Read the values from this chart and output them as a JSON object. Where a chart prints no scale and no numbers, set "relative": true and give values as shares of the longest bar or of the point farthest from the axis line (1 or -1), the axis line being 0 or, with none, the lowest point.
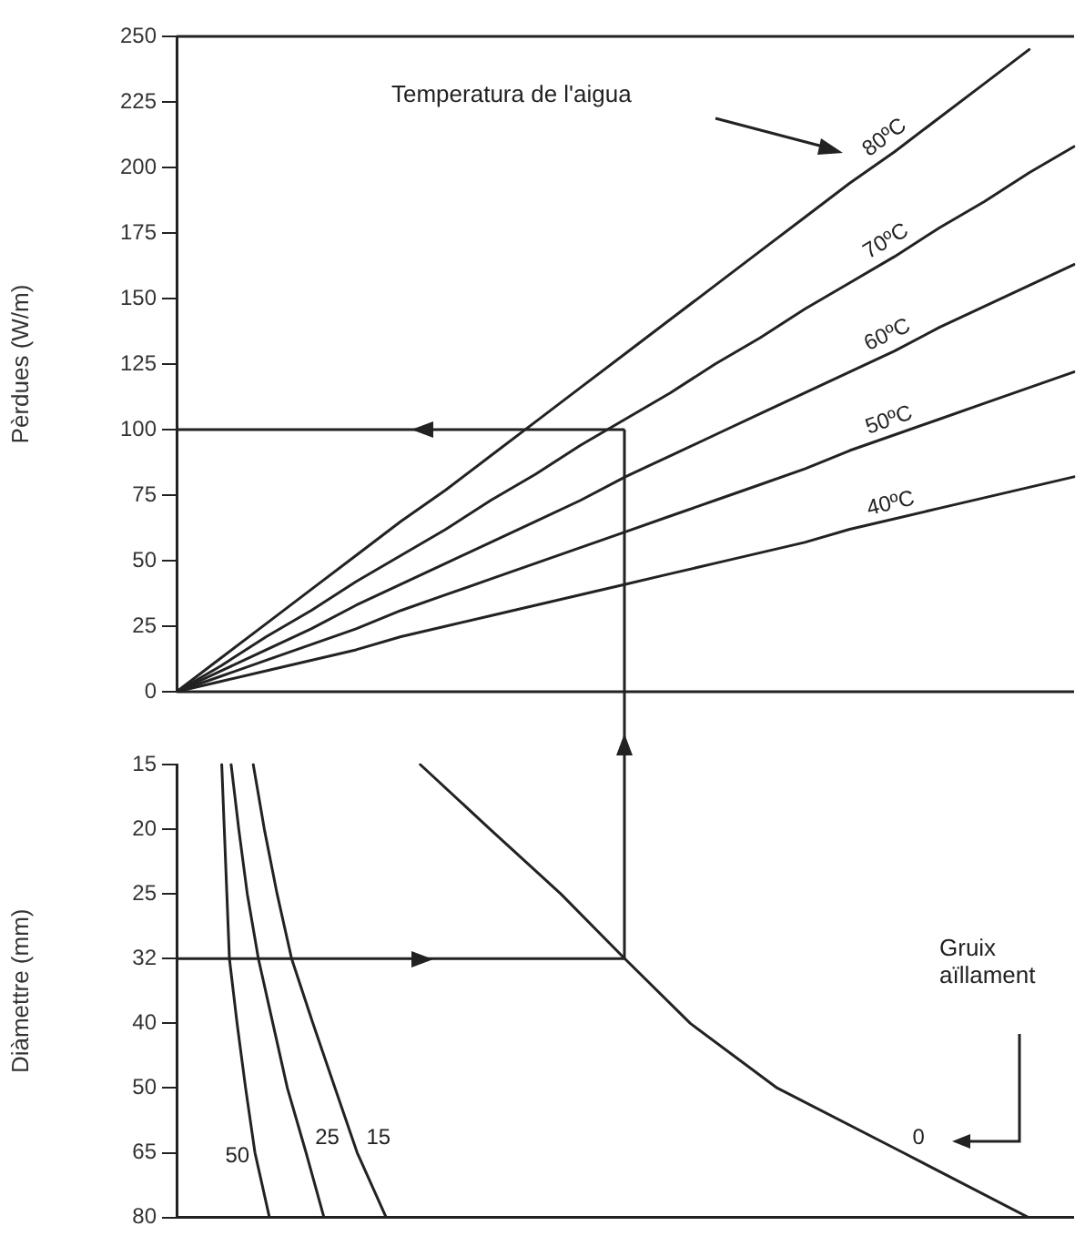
{
  "chart_data": [
    {
      "type": "line",
      "ylabel": "Pèrdues (W/m)",
      "legend_title": "Temperatura de l'aigua",
      "categories": [
        null,
        null,
        null,
        null,
        null,
        null,
        null,
        null,
        null,
        null,
        null,
        null,
        null,
        null,
        null,
        null,
        null,
        null,
        null,
        null,
        null
      ],
      "series": [
        {
          "name": "80ºC",
          "color": "#222222",
          "values": [
            0,
            13,
            26,
            39,
            52,
            65,
            77,
            90,
            103,
            116,
            129,
            142,
            155,
            168,
            181,
            194,
            206,
            219,
            232,
            245,
            null
          ]
        },
        {
          "name": "70ºC",
          "color": "#222222",
          "values": [
            0,
            10,
            21,
            31,
            42,
            52,
            62,
            73,
            83,
            94,
            104,
            114,
            125,
            135,
            146,
            156,
            166,
            177,
            187,
            198,
            208
          ]
        },
        {
          "name": "60ºC",
          "color": "#222222",
          "values": [
            0,
            8,
            16,
            24,
            33,
            41,
            49,
            57,
            65,
            73,
            82,
            90,
            98,
            106,
            114,
            122,
            130,
            139,
            147,
            155,
            163
          ]
        },
        {
          "name": "50ºC",
          "color": "#222222",
          "values": [
            0,
            6,
            12,
            18,
            24,
            31,
            37,
            43,
            49,
            55,
            61,
            67,
            73,
            79,
            85,
            92,
            98,
            104,
            110,
            116,
            122
          ]
        },
        {
          "name": "40ºC",
          "color": "#222222",
          "values": [
            0,
            4,
            8,
            12,
            16,
            21,
            25,
            29,
            33,
            37,
            41,
            45,
            49,
            53,
            57,
            62,
            66,
            70,
            74,
            78,
            82
          ]
        }
      ],
      "ylim": [
        0,
        250
      ],
      "yticks": [
        0,
        25,
        50,
        75,
        100,
        125,
        150,
        175,
        200,
        225,
        250
      ],
      "ref_lines": [
        {
          "axis": "y",
          "value": 100
        }
      ],
      "grid": false,
      "tick_labels": "y",
      "marker": "none",
      "line_style": "solid"
    },
    {
      "type": "line",
      "ylabel": "Diàmettre (mm)",
      "annotations": [
        "Gruix aïllament"
      ],
      "orientation": "horizontal",
      "relative": true,
      "categories": [
        "15",
        "20",
        "25",
        "32",
        "40",
        "50",
        "65",
        "80"
      ],
      "series": [
        {
          "name": "50",
          "color": "#222222",
          "values": [
            0.053,
            0.056,
            0.059,
            0.062,
            0.071,
            0.081,
            0.092,
            0.109
          ]
        },
        {
          "name": "25",
          "color": "#222222",
          "values": [
            0.064,
            0.073,
            0.083,
            0.096,
            0.113,
            0.13,
            0.152,
            0.173
          ]
        },
        {
          "name": "15",
          "color": "#222222",
          "values": [
            0.09,
            0.103,
            0.118,
            0.135,
            0.16,
            0.186,
            0.212,
            0.246
          ]
        },
        {
          "name": "0",
          "color": "#222222",
          "values": [
            0.286,
            0.368,
            0.451,
            0.526,
            0.603,
            0.705,
            0.853,
            1
          ]
        }
      ],
      "ref_lines": [
        {
          "axis": "y",
          "value": "32"
        }
      ],
      "grid": false,
      "tick_labels": "y",
      "marker": "none",
      "line_style": "solid"
    }
  ]
}
